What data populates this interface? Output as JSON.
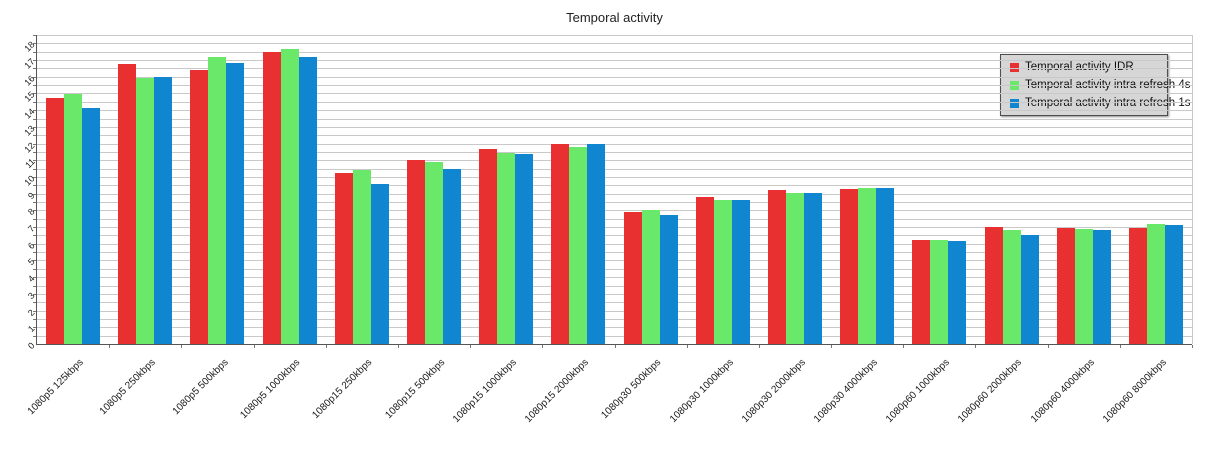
{
  "title": "Temporal activity",
  "legend": {
    "items": [
      {
        "label": "Temporal activity IDR",
        "color": "#e83030"
      },
      {
        "label": "Temporal activity intra refresh 4s",
        "color": "#6ae86a"
      },
      {
        "label": "Temporal activity intra refresh 1s",
        "color": "#1086d0"
      }
    ]
  },
  "chart_data": {
    "type": "bar",
    "title": "Temporal activity",
    "xlabel": "",
    "ylabel": "",
    "categories": [
      "1080p5 125kbps",
      "1080p5 250kbps",
      "1080p5 500kbps",
      "1080p5 1000kbps",
      "1080p15 250kbps",
      "1080p15 500kbps",
      "1080p15 1000kbps",
      "1080p15 2000kbps",
      "1080p30 500kbps",
      "1080p30 1000kbps",
      "1080p30 2000kbps",
      "1080p30 4000kbps",
      "1080p60 1000kbps",
      "1080p60 2000kbps",
      "1080p60 4000kbps",
      "1080p60 8000kbps"
    ],
    "series": [
      {
        "name": "Temporal activity IDR",
        "color": "#e83030",
        "values": [
          14.75,
          16.75,
          16.4,
          17.5,
          10.25,
          11.0,
          11.65,
          12.0,
          7.9,
          8.8,
          9.25,
          9.3,
          6.2,
          7.0,
          6.95,
          6.95
        ]
      },
      {
        "name": "Temporal activity intra refresh 4s",
        "color": "#6ae86a",
        "values": [
          14.95,
          15.9,
          17.2,
          17.65,
          10.4,
          10.9,
          11.45,
          11.8,
          8.0,
          8.6,
          9.05,
          9.35,
          6.2,
          6.85,
          6.9,
          7.2
        ]
      },
      {
        "name": "Temporal activity intra refresh 1s",
        "color": "#1086d0",
        "values": [
          14.1,
          16.0,
          16.8,
          17.2,
          9.6,
          10.5,
          11.4,
          12.0,
          7.7,
          8.65,
          9.05,
          9.35,
          6.15,
          6.55,
          6.8,
          7.15
        ]
      }
    ],
    "ylim": [
      0,
      18.5
    ],
    "y_tick_labels": [
      0,
      1,
      2,
      3,
      4,
      5,
      6,
      7,
      8,
      9,
      10,
      11,
      12,
      13,
      14,
      15,
      16,
      17,
      18
    ],
    "y_minor_step": 0.5,
    "grid": "horizontal-minor",
    "legend_position": "top-right",
    "label_rotation_deg": 45
  }
}
